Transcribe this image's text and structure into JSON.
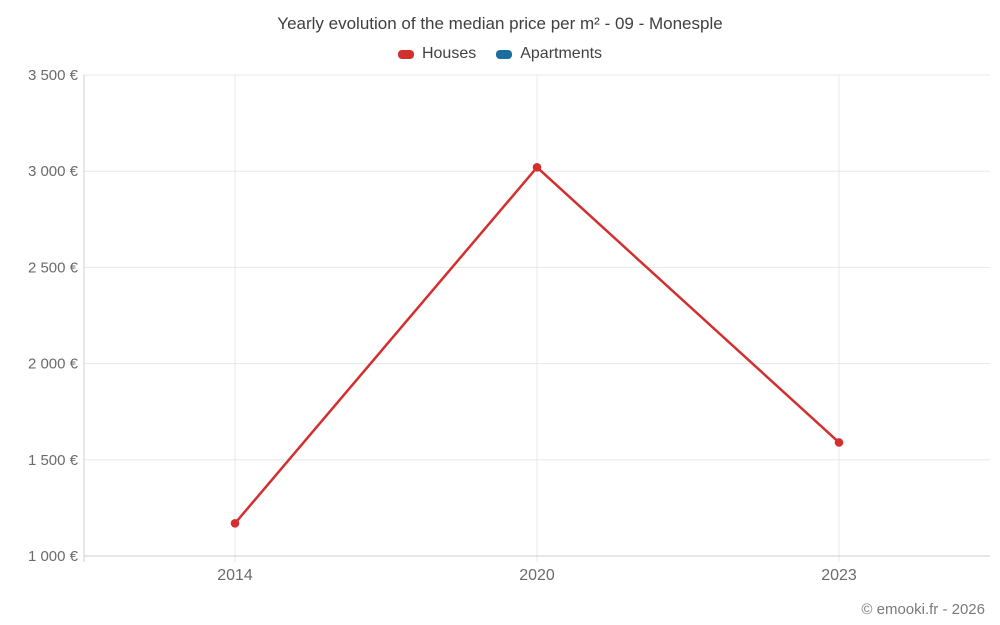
{
  "chart_data": {
    "type": "line",
    "title": "Yearly evolution of the median price per m² - 09 - Monesple",
    "categories": [
      "2014",
      "2020",
      "2023"
    ],
    "series": [
      {
        "name": "Houses",
        "color": "#d32f2f",
        "values": [
          1170,
          3020,
          1590
        ]
      },
      {
        "name": "Apartments",
        "color": "#1a6f9e",
        "values": []
      }
    ],
    "ylim": [
      1000,
      3500
    ],
    "ytick_step": 500,
    "ytick_labels": [
      "1 000 €",
      "1 500 €",
      "2 000 €",
      "2 500 €",
      "3 000 €",
      "3 500 €"
    ],
    "grid": true,
    "legend_position": "top",
    "credit": "© emooki.fr - 2026"
  }
}
